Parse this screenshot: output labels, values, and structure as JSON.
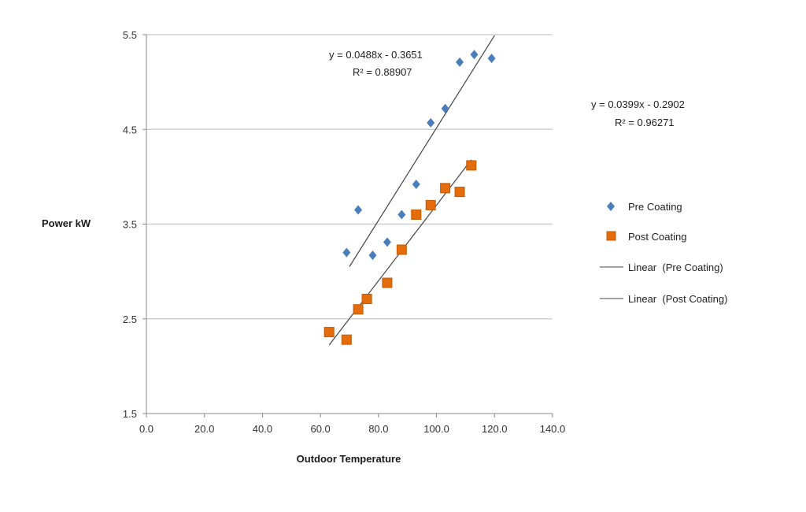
{
  "chart_data": {
    "type": "scatter",
    "xlabel": "Outdoor Temperature",
    "ylabel": "Power kW",
    "xlim": [
      0,
      140
    ],
    "ylim": [
      1.5,
      5.5
    ],
    "x_ticks": [
      "0.0",
      "20.0",
      "40.0",
      "60.0",
      "80.0",
      "100.0",
      "120.0",
      "140.0"
    ],
    "y_ticks": [
      "1.5",
      "2.5",
      "3.5",
      "4.5",
      "5.5"
    ],
    "grid": "horizontal",
    "legend_position": "right",
    "series": [
      {
        "name": "Pre Coating",
        "marker": "diamond",
        "color": "#4a7ebb",
        "points": [
          {
            "x": 69.0,
            "y": 3.2
          },
          {
            "x": 73.0,
            "y": 3.65
          },
          {
            "x": 78.0,
            "y": 3.17
          },
          {
            "x": 83.0,
            "y": 3.31
          },
          {
            "x": 88.0,
            "y": 3.6
          },
          {
            "x": 93.0,
            "y": 3.92
          },
          {
            "x": 98.0,
            "y": 4.57
          },
          {
            "x": 103.0,
            "y": 4.72
          },
          {
            "x": 108.0,
            "y": 5.21
          },
          {
            "x": 113.0,
            "y": 5.29
          },
          {
            "x": 119.0,
            "y": 5.25
          }
        ]
      },
      {
        "name": "Post Coating",
        "marker": "square",
        "color": "#e46c0a",
        "points": [
          {
            "x": 63.0,
            "y": 2.36
          },
          {
            "x": 69.0,
            "y": 2.28
          },
          {
            "x": 73.0,
            "y": 2.6
          },
          {
            "x": 76.0,
            "y": 2.71
          },
          {
            "x": 83.0,
            "y": 2.88
          },
          {
            "x": 88.0,
            "y": 3.23
          },
          {
            "x": 93.0,
            "y": 3.6
          },
          {
            "x": 98.0,
            "y": 3.7
          },
          {
            "x": 103.0,
            "y": 3.88
          },
          {
            "x": 108.0,
            "y": 3.84
          },
          {
            "x": 112.0,
            "y": 4.12
          }
        ]
      }
    ],
    "trendlines": [
      {
        "name": "Linear  (Pre Coating)",
        "slope": 0.0488,
        "intercept": -0.3651,
        "x_range": [
          70,
          120
        ],
        "equation": "y = 0.0488x - 0.3651",
        "r2": "R² = 0.88907",
        "color": "#444444"
      },
      {
        "name": "Linear  (Post Coating)",
        "slope": 0.0399,
        "intercept": -0.2902,
        "x_range": [
          63,
          112
        ],
        "equation": "y = 0.0399x - 0.2902",
        "r2": "R² = 0.96271",
        "color": "#444444"
      }
    ]
  }
}
